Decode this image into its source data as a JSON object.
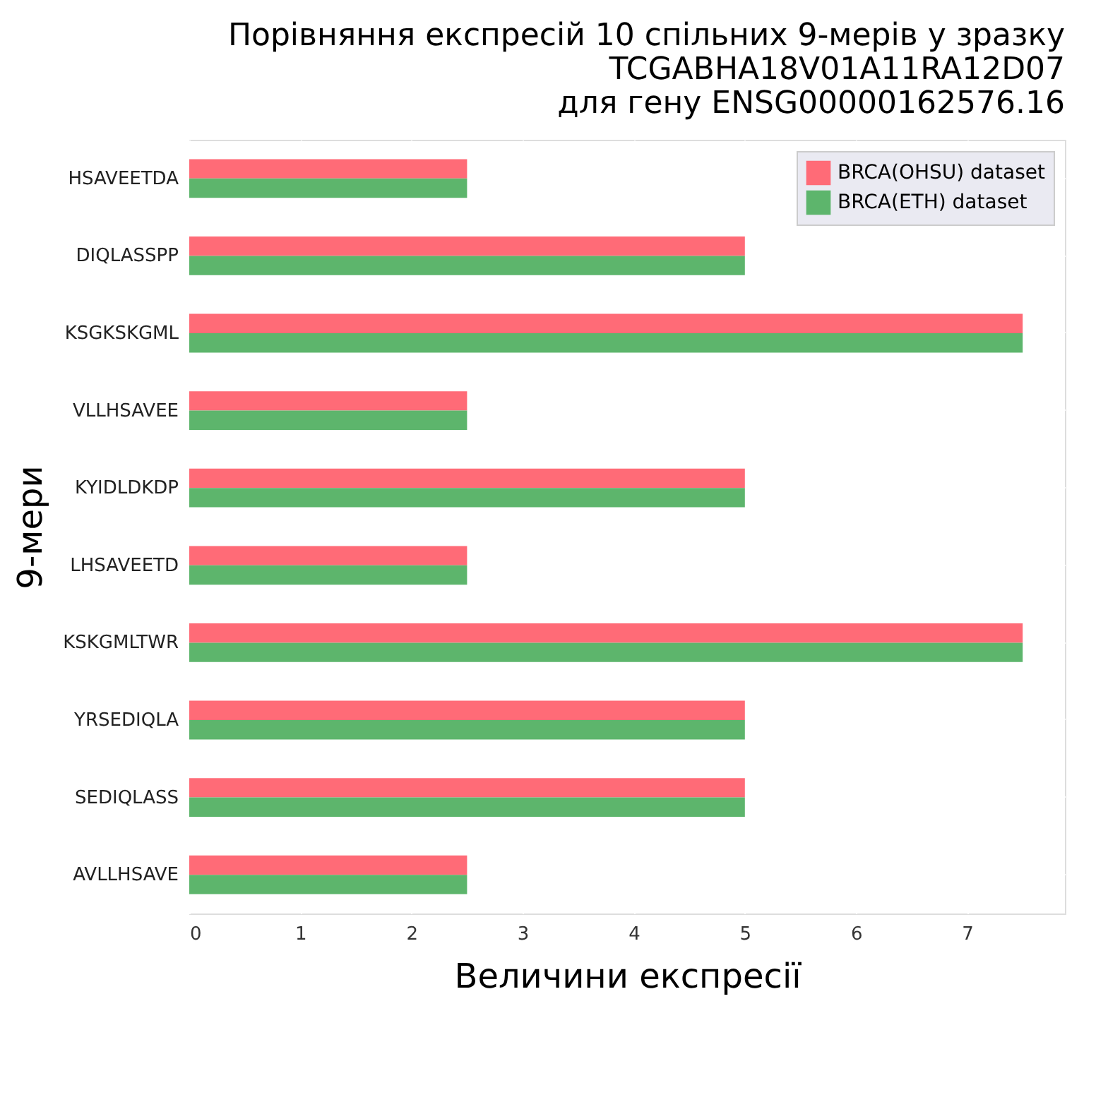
{
  "chart_data": {
    "type": "bar",
    "orientation": "horizontal",
    "title": "Порівняння експресій 10 спільних 9-мерів у зразку\nTCGABHA18V01A11RA12D07\nдля гену ENSG00000162576.16",
    "xlabel": "Величини експресії",
    "ylabel": "9-мери",
    "categories": [
      "HSAVEETDA",
      "DIQLASSPP",
      "KSGKSKGML",
      "VLLHSAVEE",
      "KYIDLDKDP",
      "LHSAVEETD",
      "KSKGMLTWR",
      "YRSEDIQLA",
      "SEDIQLASS",
      "AVLLHSAVE"
    ],
    "series": [
      {
        "name": "BRCA(OHSU) dataset",
        "color": "#ff6b77",
        "values": [
          2.5,
          5.0,
          7.5,
          2.5,
          5.0,
          2.5,
          7.5,
          5.0,
          5.0,
          2.5
        ]
      },
      {
        "name": "BRCA(ETH) dataset",
        "color": "#5db56c",
        "values": [
          2.5,
          5.0,
          7.5,
          2.5,
          5.0,
          2.5,
          7.5,
          5.0,
          5.0,
          2.5
        ]
      }
    ],
    "xlim": [
      0,
      7.88
    ],
    "xticks": [
      0,
      1,
      2,
      3,
      4,
      5,
      6,
      7
    ],
    "grid": true,
    "legend": "top right"
  }
}
